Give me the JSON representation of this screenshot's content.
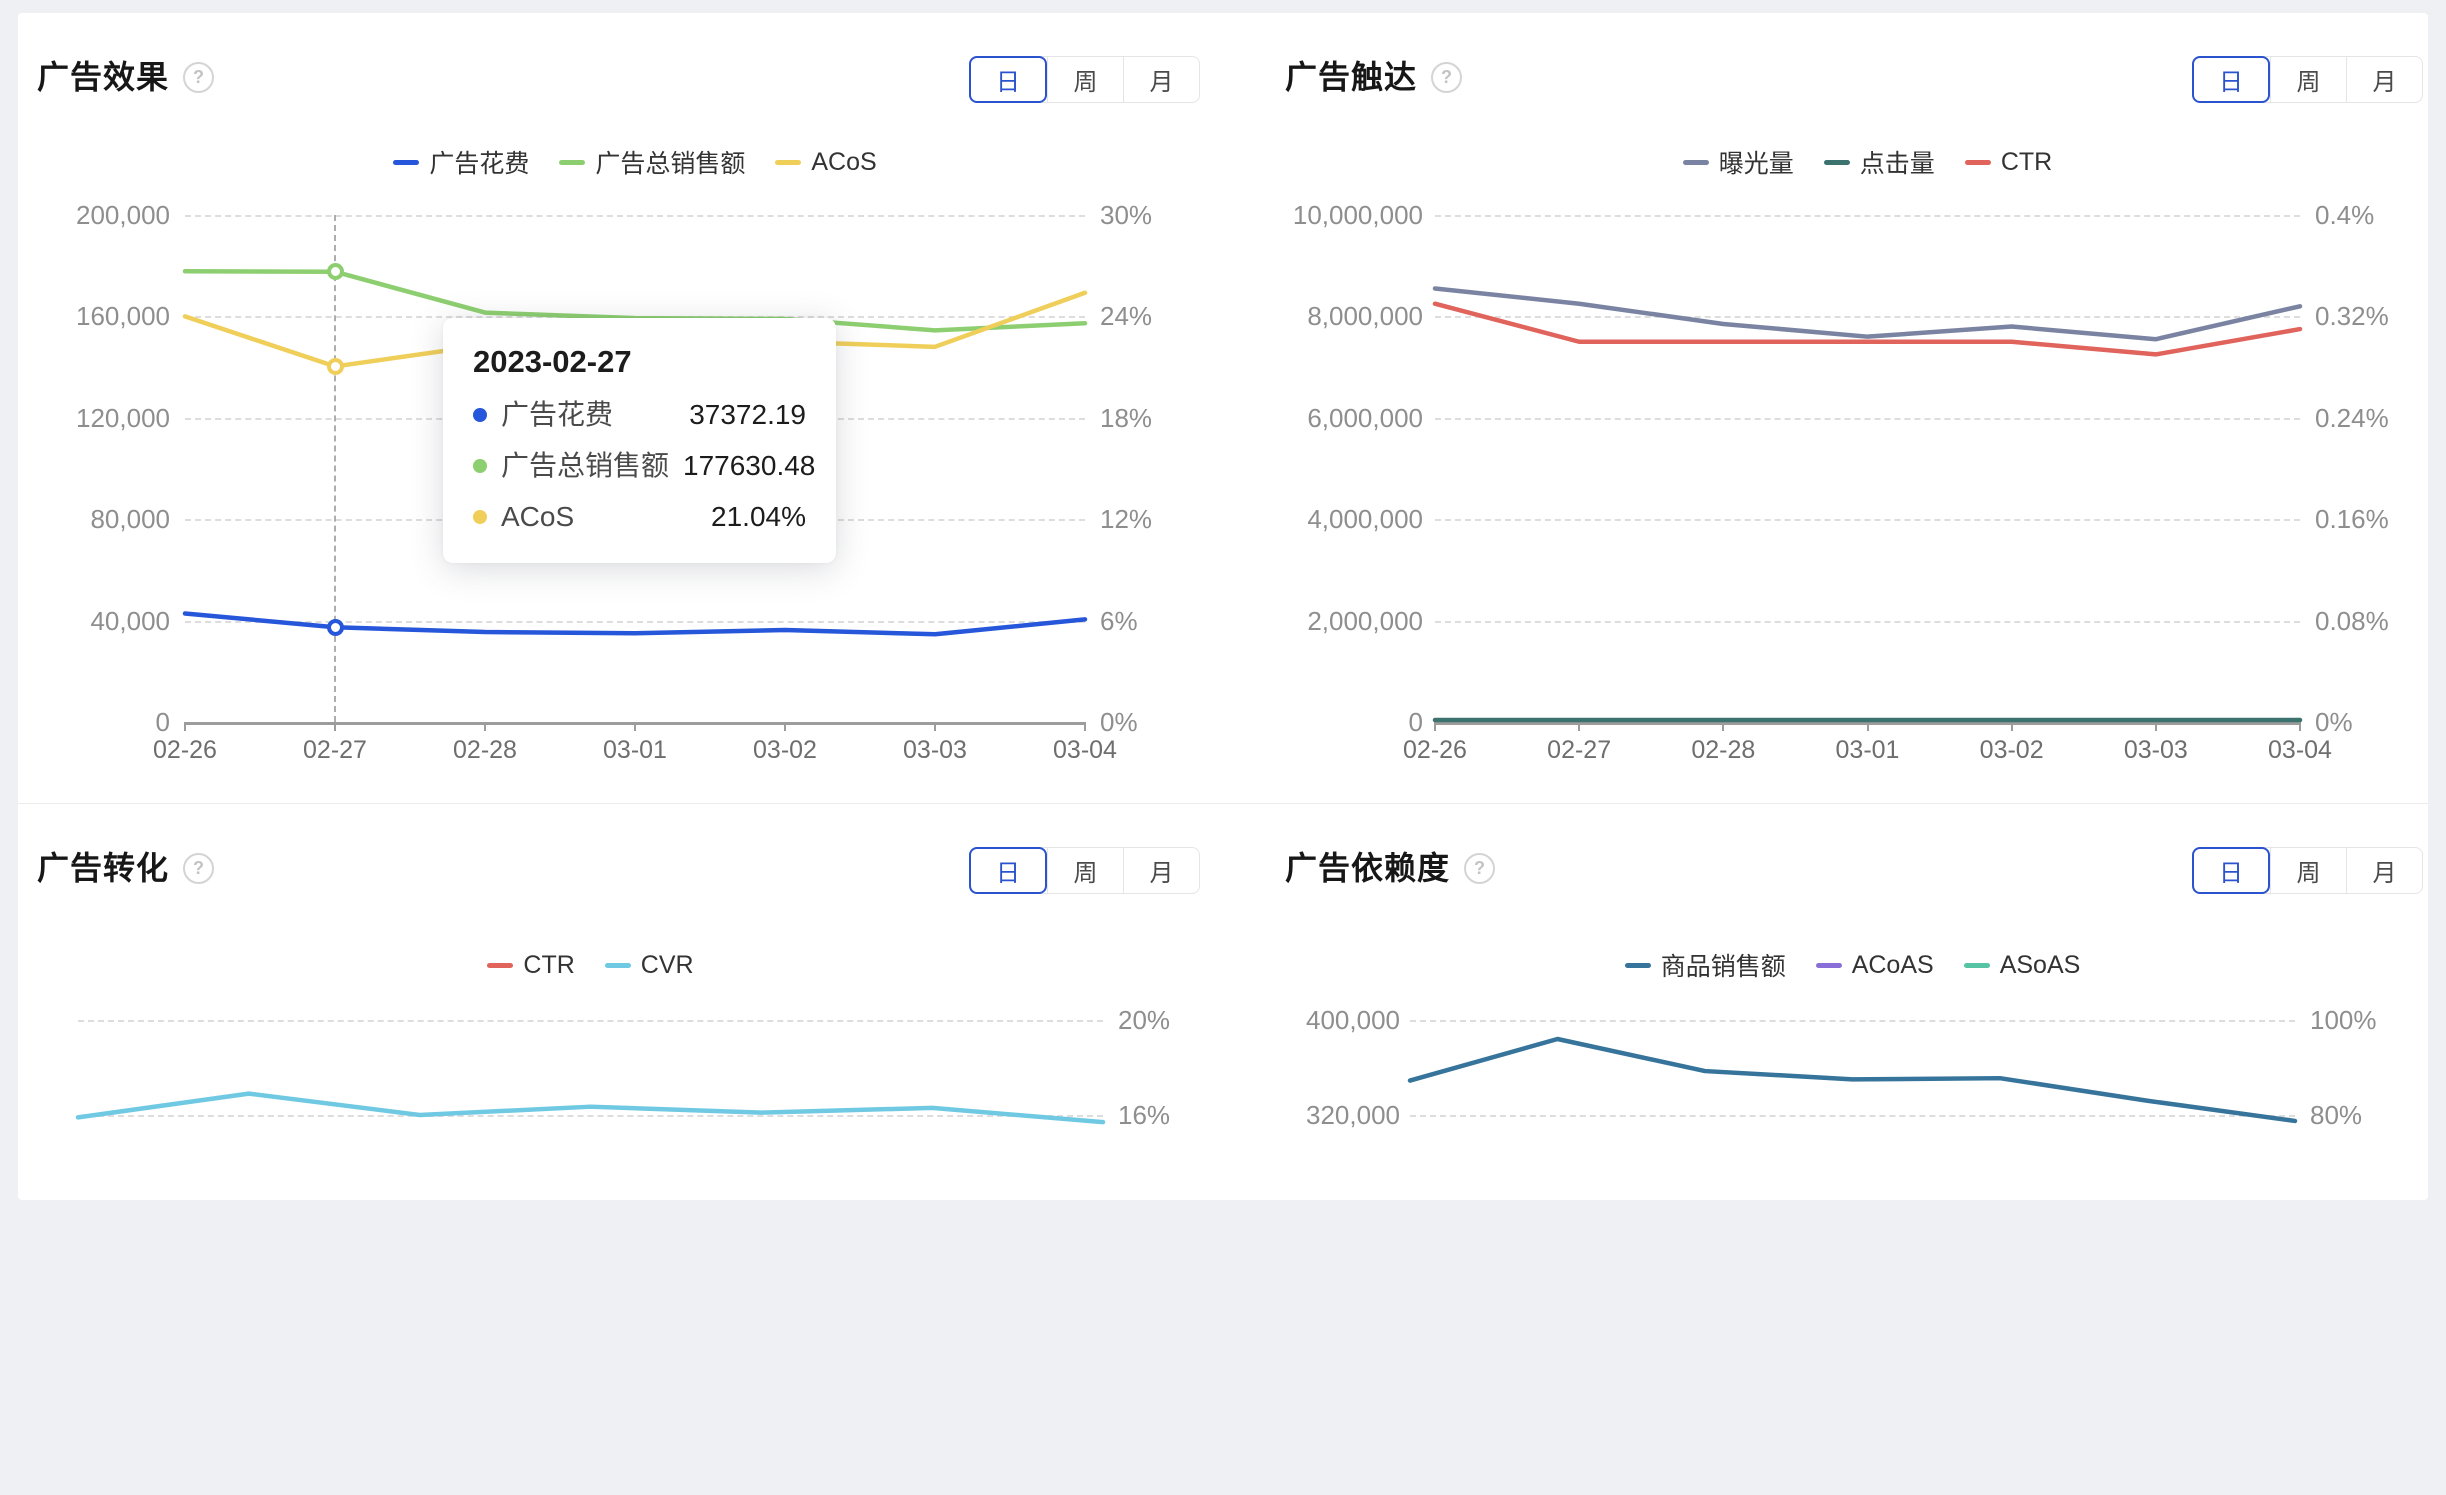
{
  "ui": {
    "background": "#EEF0F3",
    "card_background": "#FFFFFF",
    "help_icon": "?",
    "toggle": {
      "options": [
        "日",
        "周",
        "月"
      ],
      "selected": "日",
      "active_color": "#2B53CE"
    }
  },
  "chart_data": [
    {
      "type": "line",
      "title": "广告效果",
      "legend_position": "top-center",
      "grid": true,
      "x": [
        "02-26",
        "02-27",
        "02-28",
        "03-01",
        "03-02",
        "03-03",
        "03-04"
      ],
      "left_axis": {
        "ticks": [
          "200,000",
          "160,000",
          "120,000",
          "80,000",
          "40,000",
          "0"
        ],
        "top": 200000,
        "step": 40000
      },
      "right_axis": {
        "ticks": [
          "30%",
          "24%",
          "18%",
          "12%",
          "6%",
          "0%"
        ],
        "top": 30,
        "step": 6
      },
      "series": [
        {
          "name": "广告花费",
          "color": "#2656D9",
          "axis": "left",
          "values": [
            42800,
            37372.19,
            35500,
            35000,
            36300,
            34600,
            40500
          ]
        },
        {
          "name": "广告总销售额",
          "color": "#8DCF70",
          "axis": "left",
          "values": [
            177800,
            177630.48,
            161500,
            159300,
            159000,
            154500,
            157300
          ]
        },
        {
          "name": "ACoS",
          "color": "#EFCF5A",
          "axis": "right",
          "values": [
            24.0,
            21.04,
            22.3,
            22.6,
            22.5,
            22.2,
            25.4
          ]
        }
      ],
      "highlight": {
        "x_index": 1,
        "date": "2023-02-27",
        "rows": [
          {
            "label": "广告花费",
            "value": "37372.19",
            "color": "#2656D9"
          },
          {
            "label": "广告总销售额",
            "value": "177630.48",
            "color": "#8DCF70"
          },
          {
            "label": "ACoS",
            "value": "21.04%",
            "color": "#EFCF5A"
          }
        ]
      }
    },
    {
      "type": "line",
      "title": "广告触达",
      "legend_position": "top-center",
      "grid": true,
      "x": [
        "02-26",
        "02-27",
        "02-28",
        "03-01",
        "03-02",
        "03-03",
        "03-04"
      ],
      "left_axis": {
        "ticks": [
          "10,000,000",
          "8,000,000",
          "6,000,000",
          "4,000,000",
          "2,000,000",
          "0"
        ],
        "top": 10000000,
        "step": 2000000
      },
      "right_axis": {
        "ticks": [
          "0.4%",
          "0.32%",
          "0.24%",
          "0.16%",
          "0.08%",
          "0%"
        ],
        "top": 0.4,
        "step": 0.08
      },
      "series": [
        {
          "name": "曝光量",
          "color": "#7A84A2",
          "axis": "left",
          "values": [
            8550000,
            8250000,
            7850000,
            7600000,
            7800000,
            7550000,
            8200000
          ]
        },
        {
          "name": "点击量",
          "color": "#3D736F",
          "axis": "left",
          "values": [
            40000,
            40000,
            40000,
            40000,
            40000,
            40000,
            40000
          ]
        },
        {
          "name": "CTR",
          "color": "#E0635C",
          "axis": "right",
          "values": [
            0.33,
            0.3,
            0.3,
            0.3,
            0.3,
            0.29,
            0.31
          ]
        }
      ]
    },
    {
      "type": "line",
      "title": "广告转化",
      "legend_position": "top-center",
      "grid": true,
      "right_axis": {
        "ticks": [
          "20%",
          "16%"
        ],
        "top": 20,
        "step": 4
      },
      "series": [
        {
          "name": "CTR",
          "color": "#E0635C",
          "axis": "right",
          "values": []
        },
        {
          "name": "CVR",
          "color": "#6FC9E3",
          "axis": "right",
          "values": [
            15.9,
            16.9,
            16.0,
            16.35,
            16.1,
            16.3,
            15.7
          ]
        }
      ]
    },
    {
      "type": "line",
      "title": "广告依赖度",
      "legend_position": "top-center",
      "grid": true,
      "left_axis": {
        "ticks": [
          "400,000",
          "320,000"
        ],
        "top": 400000,
        "step": 80000
      },
      "right_axis": {
        "ticks": [
          "100%",
          "80%"
        ],
        "top": 100,
        "step": 20
      },
      "series": [
        {
          "name": "商品销售额",
          "color": "#37749B",
          "axis": "left",
          "values": [
            349000,
            384000,
            357000,
            350000,
            351000,
            332000,
            315000
          ]
        },
        {
          "name": "ACoAS",
          "color": "#8A6FD8",
          "axis": "right",
          "values": []
        },
        {
          "name": "ASoAS",
          "color": "#56C3A4",
          "axis": "right",
          "values": []
        }
      ]
    }
  ]
}
